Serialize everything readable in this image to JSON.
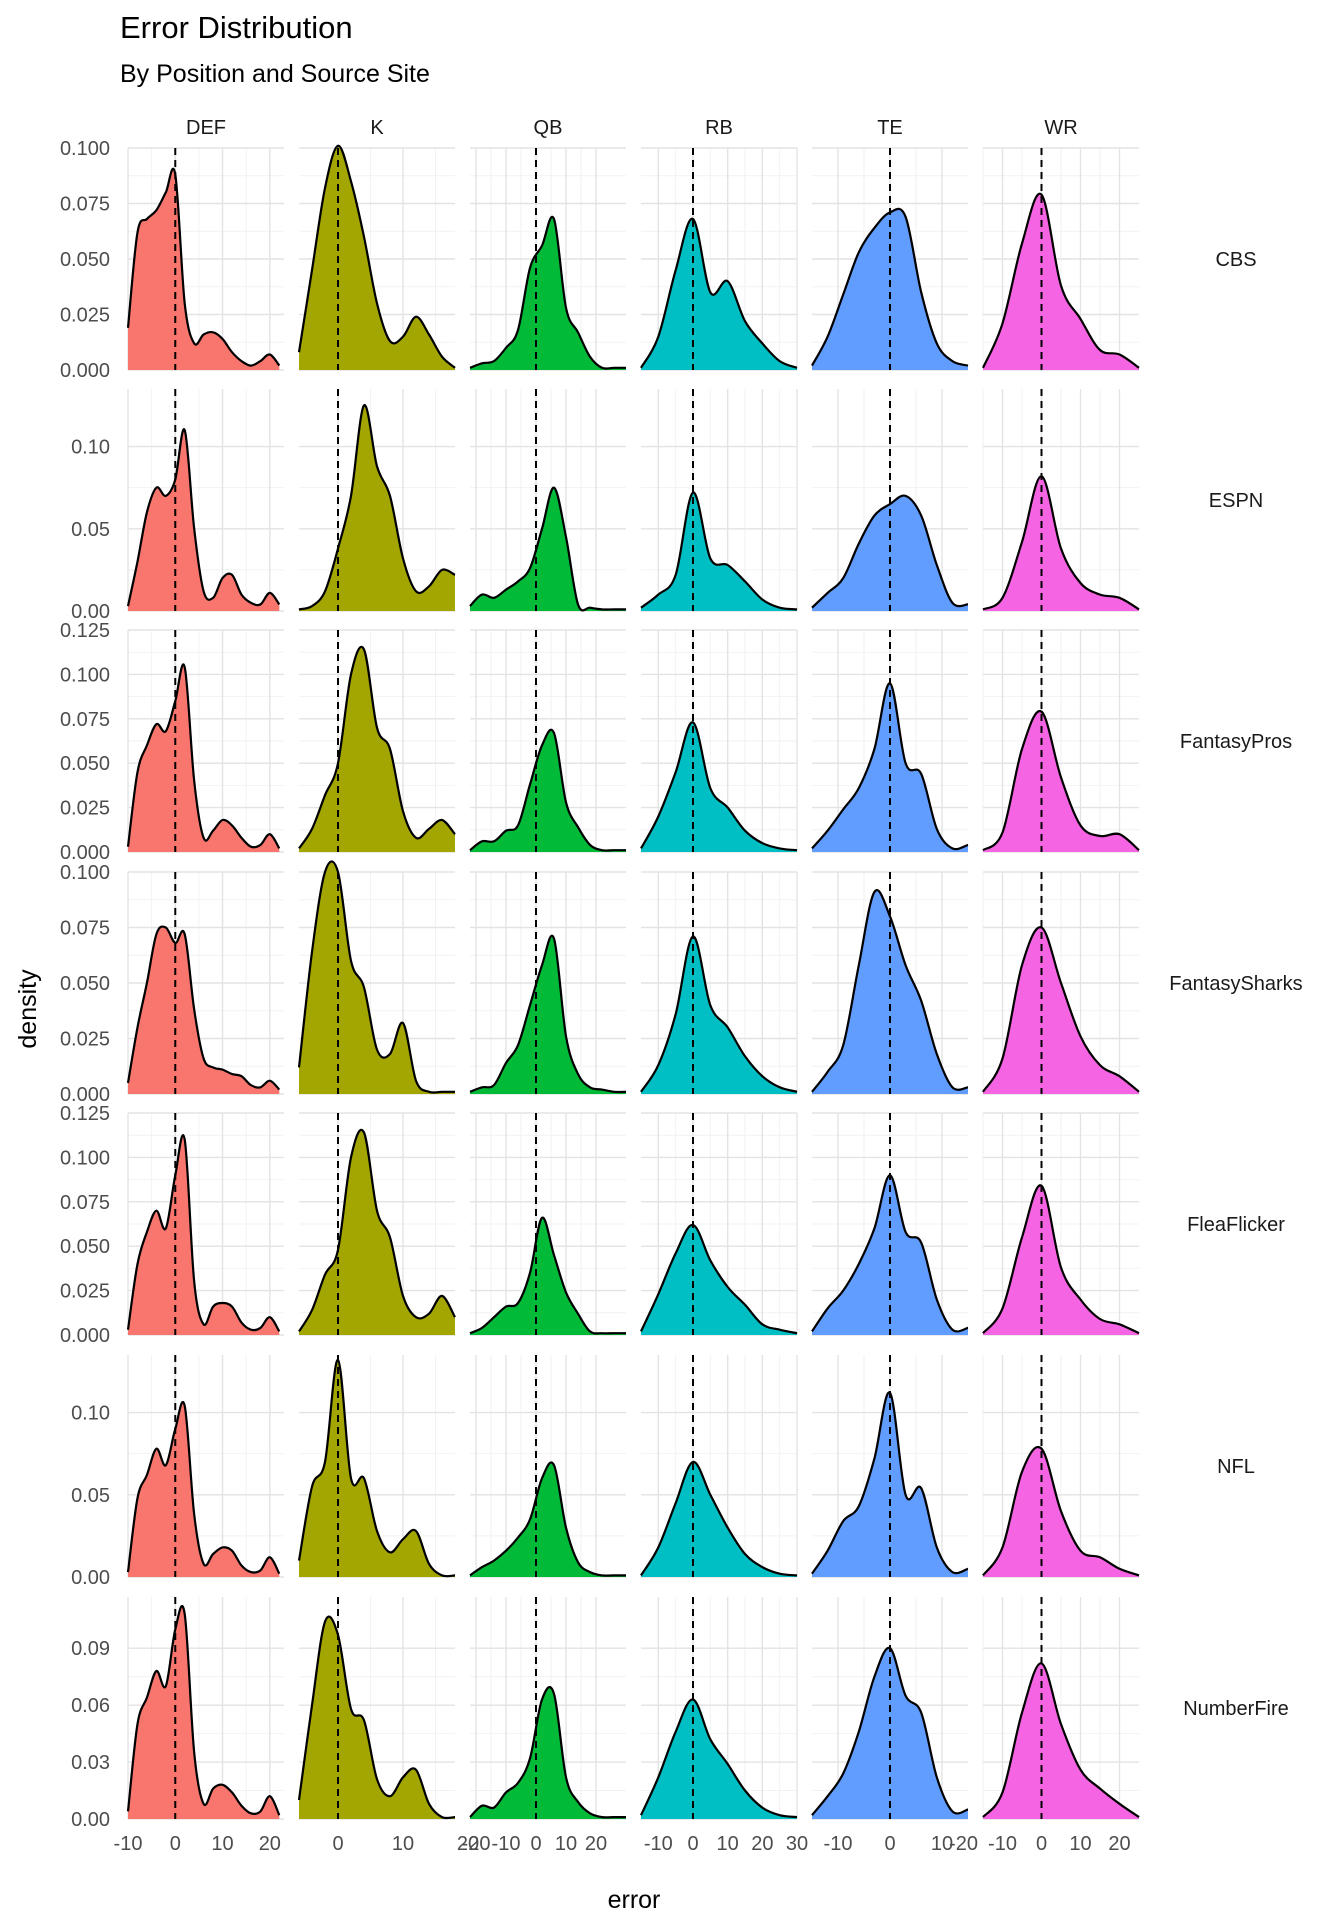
{
  "chart_data": {
    "type": "density",
    "title": "Error Distribution",
    "subtitle": "By Position and Source Site",
    "xlabel": "error",
    "ylabel": "density",
    "reference_line": {
      "x": 0,
      "style": "dashed"
    },
    "grid": true,
    "columns": [
      {
        "name": "DEF",
        "color": "#F8766D",
        "xlim": [
          -10,
          23
        ],
        "ticks": [
          -10,
          0,
          10,
          20
        ],
        "tick_labels": [
          "-10",
          "0",
          "10",
          "20"
        ],
        "xs": [
          -10,
          -8,
          -6,
          -4,
          -2,
          0,
          2,
          4,
          6,
          8,
          10,
          12,
          14,
          16,
          18,
          20,
          22
        ]
      },
      {
        "name": "K",
        "color": "#A3A500",
        "xlim": [
          -6,
          18
        ],
        "ticks": [
          0,
          10,
          20
        ],
        "tick_labels": [
          "0",
          "10",
          "20"
        ],
        "xs": [
          -6,
          -4,
          -2,
          0,
          2,
          4,
          6,
          8,
          10,
          12,
          14,
          16,
          18
        ]
      },
      {
        "name": "QB",
        "color": "#00BA38",
        "xlim": [
          -22,
          30
        ],
        "ticks": [
          -20,
          -10,
          0,
          10,
          20
        ],
        "tick_labels": [
          "-20",
          "-10",
          "0",
          "10",
          "20"
        ],
        "xs": [
          -22,
          -18,
          -14,
          -10,
          -6,
          -2,
          2,
          6,
          10,
          14,
          18,
          22,
          26,
          30
        ]
      },
      {
        "name": "RB",
        "color": "#00BFC4",
        "xlim": [
          -15,
          30
        ],
        "ticks": [
          -10,
          0,
          10,
          20,
          30
        ],
        "tick_labels": [
          "-10",
          "0",
          "10",
          "20",
          "30"
        ],
        "xs": [
          -15,
          -10,
          -5,
          0,
          5,
          10,
          15,
          20,
          25,
          30
        ]
      },
      {
        "name": "TE",
        "color": "#619CFF",
        "xlim": [
          -15,
          15
        ],
        "ticks": [
          -10,
          0,
          10
        ],
        "tick_labels": [
          "-10",
          "0",
          "10"
        ],
        "xs": [
          -15,
          -12,
          -9,
          -6,
          -3,
          0,
          3,
          6,
          9,
          12,
          15
        ]
      },
      {
        "name": "WR",
        "color": "#F564E3",
        "xlim": [
          -15,
          25
        ],
        "ticks": [
          -20,
          -10,
          0,
          10,
          20
        ],
        "tick_labels": [
          "-20",
          "-10",
          "0",
          "10",
          "20"
        ],
        "xs": [
          -15,
          -10,
          -5,
          0,
          5,
          10,
          15,
          20,
          25
        ]
      }
    ],
    "rows": [
      {
        "name": "CBS",
        "ylim": [
          0,
          0.1
        ],
        "y_ticks": [
          0,
          0.025,
          0.05,
          0.075,
          0.1
        ],
        "y_tick_labels": [
          "0.000",
          "0.025",
          "0.050",
          "0.075",
          "0.100"
        ],
        "series": [
          [
            0.019,
            0.062,
            0.068,
            0.072,
            0.08,
            0.088,
            0.03,
            0.012,
            0.016,
            0.017,
            0.014,
            0.008,
            0.004,
            0.002,
            0.004,
            0.007,
            0.002
          ],
          [
            0.008,
            0.045,
            0.082,
            0.101,
            0.085,
            0.06,
            0.03,
            0.013,
            0.015,
            0.024,
            0.016,
            0.006,
            0.001
          ],
          [
            0.001,
            0.003,
            0.004,
            0.01,
            0.018,
            0.046,
            0.056,
            0.068,
            0.028,
            0.017,
            0.006,
            0.001,
            0.001,
            0.001
          ],
          [
            0.001,
            0.015,
            0.045,
            0.068,
            0.035,
            0.04,
            0.022,
            0.012,
            0.004,
            0.001
          ],
          [
            0.002,
            0.015,
            0.034,
            0.053,
            0.064,
            0.071,
            0.069,
            0.035,
            0.012,
            0.004,
            0.002
          ],
          [
            0.001,
            0.021,
            0.057,
            0.079,
            0.038,
            0.023,
            0.009,
            0.007,
            0.001
          ]
        ]
      },
      {
        "name": "ESPN",
        "ylim": [
          0,
          0.135
        ],
        "y_ticks": [
          0,
          0.05,
          0.1
        ],
        "y_tick_labels": [
          "0.00",
          "0.05",
          "0.10"
        ],
        "series": [
          [
            0.003,
            0.03,
            0.06,
            0.075,
            0.07,
            0.08,
            0.11,
            0.05,
            0.012,
            0.008,
            0.02,
            0.022,
            0.01,
            0.005,
            0.004,
            0.011,
            0.004
          ],
          [
            0.001,
            0.003,
            0.012,
            0.038,
            0.07,
            0.125,
            0.088,
            0.07,
            0.032,
            0.012,
            0.015,
            0.025,
            0.022
          ],
          [
            0.003,
            0.01,
            0.008,
            0.013,
            0.018,
            0.026,
            0.05,
            0.075,
            0.045,
            0.004,
            0.002,
            0.001,
            0.001,
            0.001
          ],
          [
            0.002,
            0.01,
            0.022,
            0.072,
            0.032,
            0.028,
            0.018,
            0.007,
            0.002,
            0.001
          ],
          [
            0.002,
            0.011,
            0.02,
            0.041,
            0.058,
            0.065,
            0.07,
            0.058,
            0.028,
            0.005,
            0.004
          ],
          [
            0.001,
            0.008,
            0.042,
            0.082,
            0.038,
            0.017,
            0.01,
            0.008,
            0.001
          ]
        ]
      },
      {
        "name": "FantasyPros",
        "ylim": [
          0,
          0.125
        ],
        "y_ticks": [
          0,
          0.025,
          0.05,
          0.075,
          0.1,
          0.125
        ],
        "y_tick_labels": [
          "0.000",
          "0.025",
          "0.050",
          "0.075",
          "0.100",
          "0.125"
        ],
        "series": [
          [
            0.003,
            0.045,
            0.06,
            0.072,
            0.068,
            0.085,
            0.104,
            0.04,
            0.008,
            0.012,
            0.018,
            0.015,
            0.008,
            0.003,
            0.004,
            0.01,
            0.002
          ],
          [
            0.002,
            0.013,
            0.032,
            0.05,
            0.1,
            0.114,
            0.07,
            0.058,
            0.023,
            0.008,
            0.013,
            0.018,
            0.01
          ],
          [
            0.001,
            0.006,
            0.006,
            0.012,
            0.015,
            0.038,
            0.06,
            0.067,
            0.028,
            0.014,
            0.004,
            0.001,
            0.001,
            0.001
          ],
          [
            0.002,
            0.02,
            0.045,
            0.073,
            0.036,
            0.025,
            0.012,
            0.005,
            0.002,
            0.001
          ],
          [
            0.002,
            0.012,
            0.024,
            0.036,
            0.058,
            0.095,
            0.05,
            0.044,
            0.013,
            0.002,
            0.004
          ],
          [
            0.001,
            0.011,
            0.058,
            0.079,
            0.042,
            0.015,
            0.009,
            0.01,
            0.001
          ]
        ]
      },
      {
        "name": "FantasySharks",
        "ylim": [
          0,
          0.1
        ],
        "y_ticks": [
          0,
          0.025,
          0.05,
          0.075,
          0.1
        ],
        "y_tick_labels": [
          "0.000",
          "0.025",
          "0.050",
          "0.075",
          "0.100"
        ],
        "series": [
          [
            0.005,
            0.03,
            0.05,
            0.072,
            0.075,
            0.068,
            0.072,
            0.038,
            0.016,
            0.012,
            0.011,
            0.009,
            0.008,
            0.004,
            0.003,
            0.006,
            0.002
          ],
          [
            0.012,
            0.064,
            0.1,
            0.1,
            0.06,
            0.048,
            0.02,
            0.018,
            0.032,
            0.006,
            0.001,
            0.001,
            0.001
          ],
          [
            0.001,
            0.003,
            0.004,
            0.014,
            0.022,
            0.04,
            0.058,
            0.07,
            0.026,
            0.009,
            0.003,
            0.002,
            0.001,
            0.001
          ],
          [
            0.001,
            0.013,
            0.036,
            0.071,
            0.04,
            0.03,
            0.017,
            0.008,
            0.003,
            0.001
          ],
          [
            0.001,
            0.01,
            0.022,
            0.058,
            0.091,
            0.08,
            0.058,
            0.042,
            0.018,
            0.003,
            0.003
          ],
          [
            0.001,
            0.016,
            0.058,
            0.075,
            0.05,
            0.026,
            0.013,
            0.008,
            0.001
          ]
        ]
      },
      {
        "name": "FleaFlicker",
        "ylim": [
          0,
          0.125
        ],
        "y_ticks": [
          0,
          0.025,
          0.05,
          0.075,
          0.1,
          0.125
        ],
        "y_tick_labels": [
          "0.000",
          "0.025",
          "0.050",
          "0.075",
          "0.100",
          "0.125"
        ],
        "series": [
          [
            0.003,
            0.04,
            0.058,
            0.07,
            0.06,
            0.09,
            0.11,
            0.03,
            0.006,
            0.016,
            0.018,
            0.016,
            0.007,
            0.003,
            0.004,
            0.01,
            0.002
          ],
          [
            0.002,
            0.014,
            0.034,
            0.048,
            0.1,
            0.114,
            0.07,
            0.055,
            0.022,
            0.01,
            0.012,
            0.022,
            0.01
          ],
          [
            0.001,
            0.004,
            0.01,
            0.016,
            0.018,
            0.035,
            0.066,
            0.045,
            0.024,
            0.012,
            0.002,
            0.001,
            0.001,
            0.001
          ],
          [
            0.002,
            0.023,
            0.046,
            0.062,
            0.042,
            0.027,
            0.017,
            0.006,
            0.003,
            0.001
          ],
          [
            0.002,
            0.015,
            0.025,
            0.04,
            0.06,
            0.09,
            0.058,
            0.052,
            0.02,
            0.003,
            0.004
          ],
          [
            0.001,
            0.015,
            0.055,
            0.084,
            0.038,
            0.02,
            0.009,
            0.006,
            0.001
          ]
        ]
      },
      {
        "name": "NFL",
        "ylim": [
          0,
          0.135
        ],
        "y_ticks": [
          0,
          0.05,
          0.1
        ],
        "y_tick_labels": [
          "0.00",
          "0.05",
          "0.10"
        ],
        "series": [
          [
            0.003,
            0.048,
            0.062,
            0.078,
            0.068,
            0.09,
            0.104,
            0.038,
            0.008,
            0.014,
            0.018,
            0.016,
            0.007,
            0.003,
            0.004,
            0.012,
            0.002
          ],
          [
            0.01,
            0.055,
            0.07,
            0.132,
            0.06,
            0.06,
            0.028,
            0.015,
            0.023,
            0.028,
            0.008,
            0.001,
            0.001
          ],
          [
            0.001,
            0.006,
            0.01,
            0.016,
            0.024,
            0.035,
            0.06,
            0.068,
            0.03,
            0.009,
            0.003,
            0.001,
            0.001,
            0.001
          ],
          [
            0.001,
            0.018,
            0.045,
            0.07,
            0.05,
            0.03,
            0.014,
            0.006,
            0.002,
            0.001
          ],
          [
            0.002,
            0.016,
            0.034,
            0.043,
            0.072,
            0.112,
            0.05,
            0.054,
            0.018,
            0.003,
            0.005
          ],
          [
            0.001,
            0.018,
            0.064,
            0.078,
            0.04,
            0.016,
            0.012,
            0.005,
            0.001
          ]
        ]
      },
      {
        "name": "NumberFire",
        "ylim": [
          0,
          0.117
        ],
        "y_ticks": [
          0,
          0.03,
          0.06,
          0.09
        ],
        "y_tick_labels": [
          "0.00",
          "0.03",
          "0.06",
          "0.09"
        ],
        "series": [
          [
            0.004,
            0.05,
            0.064,
            0.078,
            0.07,
            0.1,
            0.108,
            0.035,
            0.008,
            0.016,
            0.018,
            0.014,
            0.007,
            0.003,
            0.004,
            0.012,
            0.002
          ],
          [
            0.01,
            0.06,
            0.104,
            0.097,
            0.058,
            0.052,
            0.021,
            0.012,
            0.022,
            0.026,
            0.008,
            0.001,
            0.001
          ],
          [
            0.001,
            0.007,
            0.006,
            0.014,
            0.019,
            0.032,
            0.063,
            0.066,
            0.022,
            0.009,
            0.003,
            0.001,
            0.001,
            0.001
          ],
          [
            0.002,
            0.022,
            0.046,
            0.063,
            0.042,
            0.029,
            0.015,
            0.006,
            0.002,
            0.001
          ],
          [
            0.002,
            0.012,
            0.024,
            0.046,
            0.075,
            0.09,
            0.065,
            0.056,
            0.022,
            0.004,
            0.005
          ],
          [
            0.001,
            0.014,
            0.056,
            0.082,
            0.05,
            0.026,
            0.016,
            0.008,
            0.001
          ]
        ]
      }
    ]
  }
}
